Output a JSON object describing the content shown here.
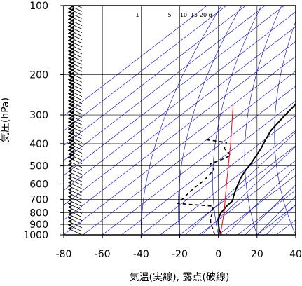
{
  "chart_data": {
    "type": "skew-t log-p sounding",
    "xlabel": "気温(実線), 露点(破線)",
    "ylabel": "気圧(hPa)",
    "xlim": [
      -80,
      40
    ],
    "ylim": [
      1000,
      100
    ],
    "x_scale": "linear (skewed isotherms)",
    "y_scale": "log",
    "x_ticks": [
      -80,
      -60,
      -40,
      -20,
      0,
      20,
      40
    ],
    "y_ticks": [
      100,
      200,
      300,
      400,
      500,
      600,
      700,
      800,
      900,
      1000
    ],
    "grid": true,
    "mixing_ratio_labels": [
      "1",
      "5",
      "10",
      "15",
      "20",
      "g"
    ],
    "series": [
      {
        "role": "temperature",
        "style": "solid",
        "color": "#000000",
        "points": [
          {
            "p": 1000,
            "t": 1.5
          },
          {
            "p": 950,
            "t": -3
          },
          {
            "p": 900,
            "t": -7
          },
          {
            "p": 850,
            "t": -11
          },
          {
            "p": 800,
            "t": -13.5
          },
          {
            "p": 750,
            "t": -15
          },
          {
            "p": 710,
            "t": -15.5
          },
          {
            "p": 680,
            "t": -18
          },
          {
            "p": 640,
            "t": -21
          },
          {
            "p": 600,
            "t": -24
          },
          {
            "p": 560,
            "t": -27
          },
          {
            "p": 520,
            "t": -29.5
          },
          {
            "p": 490,
            "t": -31
          },
          {
            "p": 460,
            "t": -33
          },
          {
            "p": 420,
            "t": -36
          },
          {
            "p": 390,
            "t": -39
          },
          {
            "p": 350,
            "t": -43
          },
          {
            "p": 300,
            "t": -46
          },
          {
            "p": 250,
            "t": -49
          },
          {
            "p": 210,
            "t": -51
          },
          {
            "p": 180,
            "t": -53
          },
          {
            "p": 160,
            "t": -54
          },
          {
            "p": 140,
            "t": -56
          },
          {
            "p": 125,
            "t": -58
          },
          {
            "p": 110,
            "t": -59
          },
          {
            "p": 100,
            "t": -58
          }
        ]
      },
      {
        "role": "dew point",
        "style": "dashed",
        "color": "#000000",
        "points": [
          {
            "p": 1000,
            "t": -2
          },
          {
            "p": 950,
            "t": -6
          },
          {
            "p": 900,
            "t": -11
          },
          {
            "p": 850,
            "t": -15
          },
          {
            "p": 800,
            "t": -18
          },
          {
            "p": 750,
            "t": -22
          },
          {
            "p": 730,
            "t": -42
          },
          {
            "p": 680,
            "t": -43
          },
          {
            "p": 630,
            "t": -44
          },
          {
            "p": 580,
            "t": -44
          },
          {
            "p": 520,
            "t": -46
          },
          {
            "p": 490,
            "t": -52
          },
          {
            "p": 470,
            "t": -49
          },
          {
            "p": 450,
            "t": -47
          },
          {
            "p": 420,
            "t": -55
          },
          {
            "p": 395,
            "t": -58
          },
          {
            "p": 385,
            "t": -70
          }
        ]
      },
      {
        "role": "reference lapse line",
        "style": "solid",
        "color": "#ff0000",
        "points": [
          {
            "p": 1000,
            "t": 1
          },
          {
            "p": 800,
            "t": -12
          },
          {
            "p": 600,
            "t": -30
          },
          {
            "p": 400,
            "t": -55
          },
          {
            "p": 270,
            "t": -80
          }
        ]
      }
    ],
    "wind_barbs_present": true
  },
  "colors": {
    "isotherm_grid": "#0000cc",
    "temperature": "#000000",
    "dewpoint": "#000000",
    "reference_line": "#ff0000",
    "barbs": "#000000"
  }
}
